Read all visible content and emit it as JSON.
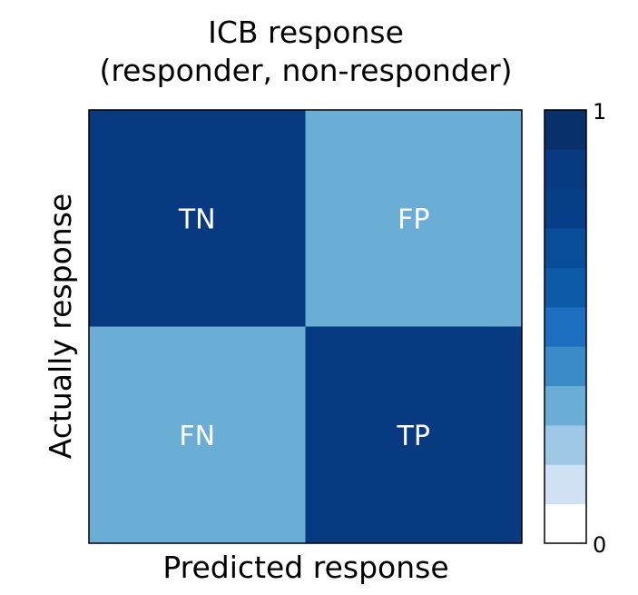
{
  "chart_data": {
    "type": "heatmap",
    "title_line1": "ICB response",
    "title_line2": "(responder, non-responder)",
    "xlabel": "Predicted response",
    "ylabel": "Actually response",
    "cells": [
      {
        "label": "TN",
        "row": 0,
        "col": 0,
        "value": 0.82
      },
      {
        "label": "FP",
        "row": 0,
        "col": 1,
        "value": 0.3
      },
      {
        "label": "FN",
        "row": 1,
        "col": 0,
        "value": 0.3
      },
      {
        "label": "TP",
        "row": 1,
        "col": 1,
        "value": 0.82
      }
    ],
    "colorbar": {
      "min_label": "0",
      "max_label": "1",
      "range": [
        0,
        1
      ],
      "colors": [
        "#ffffff",
        "#cfe1f2",
        "#9ec8e5",
        "#6aaed6",
        "#3a8cc9",
        "#1c6fc0",
        "#0b5aa8",
        "#084d9a",
        "#063f88",
        "#073a80",
        "#08306b"
      ]
    },
    "grid": false,
    "legend": "colorbar-right"
  }
}
